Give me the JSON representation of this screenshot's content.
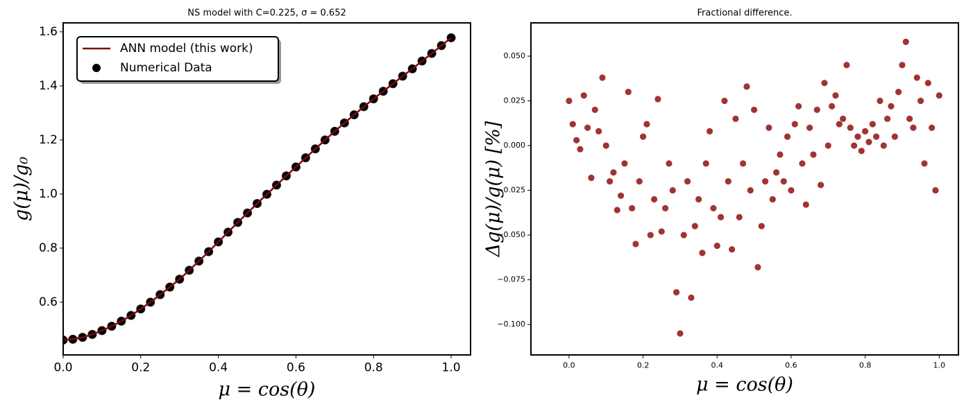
{
  "chart_data": [
    {
      "type": "line",
      "title": "NS model with C=0.225, σ = 0.652",
      "xlabel": "μ = cos(θ)",
      "ylabel": "g(μ)/g₀",
      "x": [
        0,
        0.025,
        0.05,
        0.075,
        0.1,
        0.125,
        0.15,
        0.175,
        0.2,
        0.225,
        0.25,
        0.275,
        0.3,
        0.325,
        0.35,
        0.375,
        0.4,
        0.425,
        0.45,
        0.475,
        0.5,
        0.525,
        0.55,
        0.575,
        0.6,
        0.625,
        0.65,
        0.675,
        0.7,
        0.725,
        0.75,
        0.775,
        0.8,
        0.825,
        0.85,
        0.875,
        0.9,
        0.925,
        0.95,
        0.975,
        1.0
      ],
      "series": [
        {
          "name": "Numerical Data",
          "type": "scatter",
          "color": "#000000",
          "values": [
            0.46,
            0.463,
            0.47,
            0.481,
            0.495,
            0.511,
            0.53,
            0.551,
            0.575,
            0.6,
            0.628,
            0.656,
            0.685,
            0.718,
            0.752,
            0.787,
            0.823,
            0.859,
            0.895,
            0.93,
            0.965,
            0.999,
            1.033,
            1.067,
            1.1,
            1.134,
            1.167,
            1.2,
            1.232,
            1.263,
            1.293,
            1.323,
            1.352,
            1.38,
            1.408,
            1.436,
            1.463,
            1.492,
            1.52,
            1.549,
            1.578
          ]
        },
        {
          "name": "ANN model (this work)",
          "type": "line",
          "color": "#7a0a0a",
          "values": [
            0.46,
            0.463,
            0.47,
            0.481,
            0.495,
            0.511,
            0.53,
            0.551,
            0.575,
            0.6,
            0.628,
            0.656,
            0.685,
            0.718,
            0.752,
            0.787,
            0.823,
            0.859,
            0.895,
            0.93,
            0.965,
            0.999,
            1.033,
            1.067,
            1.1,
            1.134,
            1.167,
            1.2,
            1.232,
            1.263,
            1.293,
            1.323,
            1.352,
            1.38,
            1.408,
            1.436,
            1.463,
            1.492,
            1.52,
            1.549,
            1.578
          ]
        }
      ],
      "xlim": [
        0,
        1.05
      ],
      "ylim": [
        0.405,
        1.633
      ],
      "xticks": [
        {
          "value": 0,
          "label": "0.0"
        },
        0.2,
        0.4,
        0.6,
        0.8,
        {
          "value": 1,
          "label": "1.0"
        }
      ],
      "yticks": [
        0.6,
        0.8,
        {
          "value": 1,
          "label": "1.0"
        },
        1.2,
        1.4,
        1.6
      ],
      "legend": "upper left",
      "legend_order": [
        1,
        0
      ]
    },
    {
      "type": "scatter",
      "title": "Fractional difference.",
      "xlabel": "μ = cos(θ)",
      "ylabel": "Δg(μ)/g(μ)  [%]",
      "color": "#8b0000",
      "x": [
        0.0,
        0.01,
        0.02,
        0.03,
        0.04,
        0.05,
        0.06,
        0.07,
        0.08,
        0.09,
        0.1,
        0.11,
        0.12,
        0.13,
        0.14,
        0.15,
        0.16,
        0.17,
        0.18,
        0.19,
        0.2,
        0.21,
        0.22,
        0.23,
        0.24,
        0.25,
        0.26,
        0.27,
        0.28,
        0.29,
        0.3,
        0.31,
        0.32,
        0.33,
        0.34,
        0.35,
        0.36,
        0.37,
        0.38,
        0.39,
        0.4,
        0.41,
        0.42,
        0.43,
        0.44,
        0.45,
        0.46,
        0.47,
        0.48,
        0.49,
        0.5,
        0.51,
        0.52,
        0.53,
        0.54,
        0.55,
        0.56,
        0.57,
        0.58,
        0.59,
        0.6,
        0.61,
        0.62,
        0.63,
        0.64,
        0.65,
        0.66,
        0.67,
        0.68,
        0.69,
        0.7,
        0.71,
        0.72,
        0.73,
        0.74,
        0.75,
        0.76,
        0.77,
        0.78,
        0.79,
        0.8,
        0.81,
        0.82,
        0.83,
        0.84,
        0.85,
        0.86,
        0.87,
        0.88,
        0.89,
        0.9,
        0.91,
        0.92,
        0.93,
        0.94,
        0.95,
        0.96,
        0.97,
        0.98,
        0.99,
        1.0
      ],
      "values": [
        0.025,
        0.012,
        0.003,
        -0.002,
        0.028,
        0.01,
        -0.018,
        0.02,
        0.008,
        0.038,
        0.0,
        -0.02,
        -0.015,
        -0.036,
        -0.028,
        -0.01,
        0.03,
        -0.035,
        -0.055,
        -0.02,
        0.005,
        0.012,
        -0.05,
        -0.03,
        0.026,
        -0.048,
        -0.035,
        -0.01,
        -0.025,
        -0.082,
        -0.105,
        -0.05,
        -0.02,
        -0.085,
        -0.045,
        -0.03,
        -0.06,
        -0.01,
        0.008,
        -0.035,
        -0.056,
        -0.04,
        0.025,
        -0.02,
        -0.058,
        0.015,
        -0.04,
        -0.01,
        0.033,
        -0.025,
        0.02,
        -0.068,
        -0.045,
        -0.02,
        0.01,
        -0.03,
        -0.015,
        -0.005,
        -0.02,
        0.005,
        -0.025,
        0.012,
        0.022,
        -0.01,
        -0.033,
        0.01,
        -0.005,
        0.02,
        -0.022,
        0.035,
        0.0,
        0.022,
        0.028,
        0.012,
        0.015,
        0.045,
        0.01,
        0.0,
        0.005,
        -0.003,
        0.008,
        0.002,
        0.012,
        0.005,
        0.025,
        0.0,
        0.015,
        0.022,
        0.005,
        0.03,
        0.045,
        0.058,
        0.015,
        0.01,
        0.038,
        0.025,
        -0.01,
        0.035,
        0.01,
        -0.025,
        0.028
      ],
      "xlim": [
        -0.103,
        1.052
      ],
      "ylim": [
        -0.117,
        0.0686
      ],
      "xticks": [
        {
          "value": 0,
          "label": "0.0"
        },
        0.2,
        0.4,
        0.6,
        0.8,
        {
          "value": 1,
          "label": "1.0"
        }
      ],
      "yticks": [
        {
          "value": -0.1,
          "label": "−0.100"
        },
        {
          "value": -0.075,
          "label": "−0.075"
        },
        {
          "value": -0.05,
          "label": "−0.050"
        },
        {
          "value": -0.025,
          "label": "−0.025"
        },
        {
          "value": 0,
          "label": "0.000"
        },
        {
          "value": 0.025,
          "label": "0.025"
        },
        {
          "value": 0.05,
          "label": "0.050"
        }
      ]
    }
  ]
}
